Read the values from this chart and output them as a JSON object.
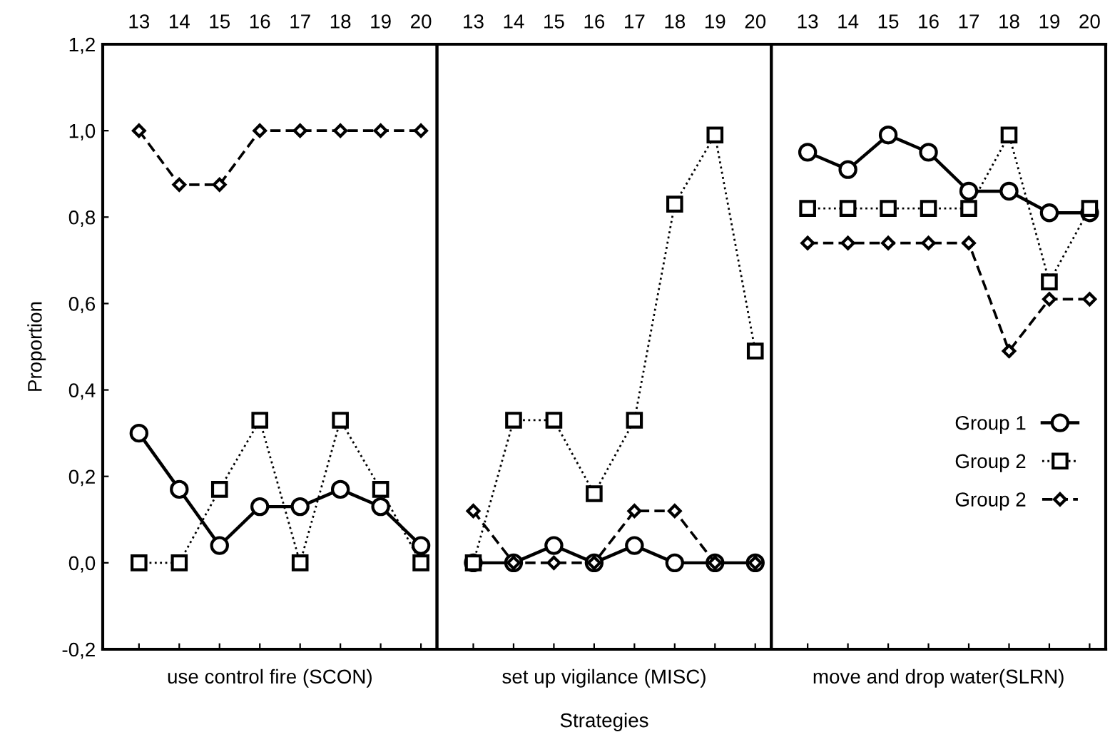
{
  "chart_data": [
    {
      "type": "line",
      "xlabel": "use control fire (SCON)",
      "ylabel": "Proportion",
      "categories": [
        "13",
        "14",
        "15",
        "16",
        "17",
        "18",
        "19",
        "20"
      ],
      "ylim": [
        -0.2,
        1.2
      ],
      "yticks": [
        {
          "value": -0.2,
          "label": "-0,2"
        },
        {
          "value": 0.0,
          "label": "0,0"
        },
        {
          "value": 0.2,
          "label": "0,2"
        },
        {
          "value": 0.4,
          "label": "0,4"
        },
        {
          "value": 0.6,
          "label": "0,6"
        },
        {
          "value": 0.8,
          "label": "0,8"
        },
        {
          "value": 1.0,
          "label": "1,0"
        },
        {
          "value": 1.2,
          "label": "1,2"
        }
      ],
      "grid": false,
      "legend": false,
      "series": [
        {
          "color": "#000000",
          "marker": "circle",
          "line_style": "solid",
          "values": [
            0.3,
            0.17,
            0.04,
            0.13,
            0.13,
            0.17,
            0.13,
            0.04
          ]
        },
        {
          "color": "#000000",
          "marker": "square",
          "line_style": "dotted",
          "values": [
            0.0,
            0.0,
            0.17,
            0.33,
            0.0,
            0.33,
            0.17,
            0.0
          ]
        },
        {
          "color": "#000000",
          "marker": "diamond",
          "line_style": "dashed",
          "values": [
            1.0,
            0.875,
            0.875,
            1.0,
            1.0,
            1.0,
            1.0,
            1.0
          ]
        }
      ]
    },
    {
      "type": "line",
      "xlabel": "set up vigilance (MISC)",
      "annotations": [
        "Strategies"
      ],
      "categories": [
        "13",
        "14",
        "15",
        "16",
        "17",
        "18",
        "19",
        "20"
      ],
      "ylim": [
        -0.2,
        1.2
      ],
      "tick_labels": "x",
      "grid": false,
      "legend": false,
      "series": [
        {
          "color": "#000000",
          "marker": "circle",
          "line_style": "solid",
          "values": [
            0.0,
            0.0,
            0.04,
            0.0,
            0.04,
            0.0,
            0.0,
            0.0
          ]
        },
        {
          "color": "#000000",
          "marker": "square",
          "line_style": "dotted",
          "values": [
            0.0,
            0.33,
            0.33,
            0.16,
            0.33,
            0.83,
            0.99,
            0.49
          ]
        },
        {
          "color": "#000000",
          "marker": "diamond",
          "line_style": "dashed",
          "values": [
            0.12,
            0.0,
            0.0,
            0.0,
            0.12,
            0.12,
            0.0,
            0.0
          ]
        }
      ]
    },
    {
      "type": "line",
      "xlabel": "move and drop water(SLRN)",
      "categories": [
        "13",
        "14",
        "15",
        "16",
        "17",
        "18",
        "19",
        "20"
      ],
      "ylim": [
        -0.2,
        1.2
      ],
      "tick_labels": "x",
      "grid": false,
      "legend": "bottom right",
      "series": [
        {
          "name": "Group 1",
          "color": "#000000",
          "marker": "circle",
          "line_style": "solid",
          "values": [
            0.95,
            0.91,
            0.99,
            0.95,
            0.86,
            0.86,
            0.81,
            0.81
          ]
        },
        {
          "name": "Group 2",
          "color": "#000000",
          "marker": "square",
          "line_style": "dotted",
          "values": [
            0.82,
            0.82,
            0.82,
            0.82,
            0.82,
            0.99,
            0.65,
            0.82
          ]
        },
        {
          "name": "Group 2",
          "color": "#000000",
          "marker": "diamond",
          "line_style": "dashed",
          "values": [
            0.74,
            0.74,
            0.74,
            0.74,
            0.74,
            0.49,
            0.61,
            0.61
          ]
        }
      ]
    }
  ]
}
